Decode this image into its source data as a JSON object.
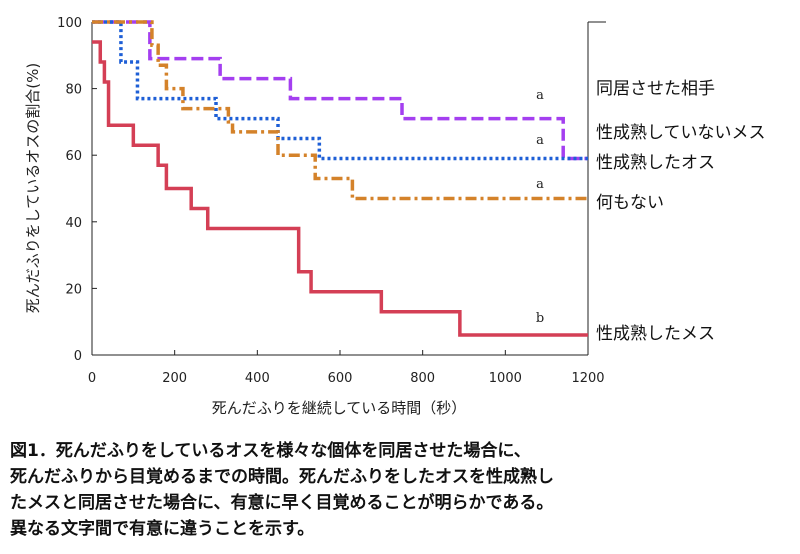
{
  "chart_data": {
    "type": "line",
    "xlabel": "死んだふりを継続している時間（秒）",
    "ylabel": "死んだふりをしているオスの割合(%)",
    "xlim": [
      0,
      1200
    ],
    "ylim": [
      0,
      100
    ],
    "xticks": [
      "0",
      "200",
      "400",
      "600",
      "800",
      "1000",
      "1200"
    ],
    "yticks": [
      "0",
      "20",
      "40",
      "60",
      "80",
      "100"
    ],
    "grid": false,
    "series": [
      {
        "name": "同居させた相手",
        "significance": "a",
        "color": "#a43ff0",
        "style": "dashed",
        "x": [
          0,
          140,
          240,
          310,
          480,
          750,
          1140,
          1200
        ],
        "y": [
          100,
          89,
          89,
          83,
          77,
          71,
          59,
          59
        ]
      },
      {
        "name": "性成熟していないメス",
        "significance": "a",
        "color": "#1e5fd6",
        "style": "dotted",
        "x": [
          0,
          70,
          110,
          300,
          450,
          550,
          1200
        ],
        "y": [
          100,
          88,
          77,
          71,
          65,
          59,
          59
        ]
      },
      {
        "name": "性成熟したオス",
        "significance": "a",
        "color": "#1e5fd6",
        "style": "dotted",
        "x": [],
        "y": []
      },
      {
        "name": "何もない",
        "significance": "a",
        "color": "#d4822a",
        "style": "dashdot",
        "x": [
          0,
          145,
          160,
          180,
          220,
          330,
          340,
          450,
          540,
          630,
          1200
        ],
        "y": [
          100,
          93,
          87,
          80,
          74,
          70,
          67,
          60,
          53,
          47,
          47
        ]
      },
      {
        "name": "性成熟したメス",
        "significance": "b",
        "color": "#d43f55",
        "style": "solid",
        "x": [
          0,
          20,
          30,
          40,
          100,
          160,
          180,
          240,
          280,
          500,
          530,
          700,
          890,
          1200
        ],
        "y": [
          94,
          88,
          82,
          69,
          63,
          57,
          50,
          44,
          38,
          25,
          19,
          13,
          6,
          6
        ]
      }
    ]
  },
  "caption": {
    "lines": [
      "図1．死んだふりをしているオスを様々な個体を同居させた場合に、",
      "死んだふりから目覚めるまでの時間。死んだふりをしたオスを性成熟し",
      "たメスと同居させた場合に、有意に早く目覚めることが明らかである。",
      "異なる文字間で有意に違うことを示す。"
    ]
  }
}
